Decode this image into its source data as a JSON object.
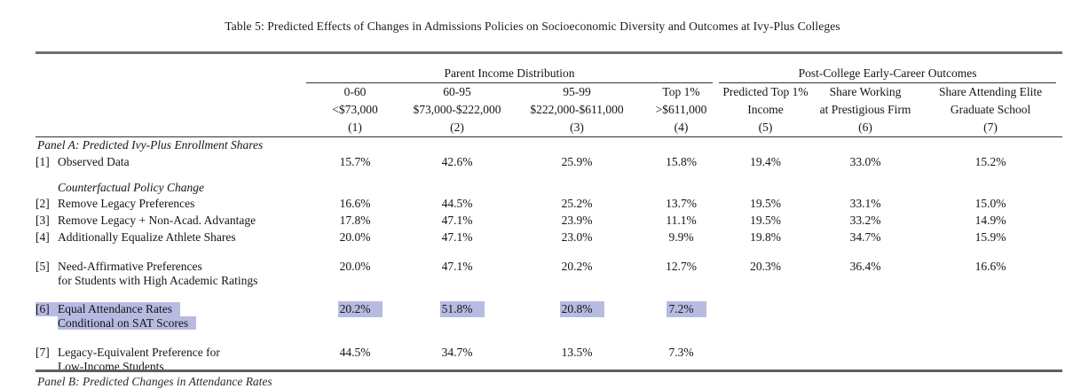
{
  "page": {
    "background": "#ffffff",
    "text_color": "#151515",
    "highlight_color": "#b7bbe1"
  },
  "title": "Table 5: Predicted Effects of Changes in Admissions Policies on Socioeconomic Diversity and Outcomes at Ivy-Plus Colleges",
  "table": {
    "groups": [
      {
        "label": "Parent Income Distribution",
        "colspan": 4
      },
      {
        "label": "Post-College Early-Career Outcomes",
        "colspan": 3
      }
    ],
    "columns": [
      {
        "l1": "0-60",
        "l2": "<$73,000",
        "num": "(1)"
      },
      {
        "l1": "60-95",
        "l2": "$73,000-$222,000",
        "num": "(2)"
      },
      {
        "l1": "95-99",
        "l2": "$222,000-$611,000",
        "num": "(3)"
      },
      {
        "l1": "Top 1%",
        "l2": ">$611,000",
        "num": "(4)"
      },
      {
        "l1": "Predicted Top 1%",
        "l2": "Income",
        "num": "(5)"
      },
      {
        "l1": "Share Working",
        "l2": "at Prestigious Firm",
        "num": "(6)"
      },
      {
        "l1": "Share Attending Elite",
        "l2": "Graduate School",
        "num": "(7)"
      }
    ],
    "rows": [
      {
        "type": "panel",
        "text": "Panel A: Predicted Ivy-Plus Enrollment Shares"
      },
      {
        "type": "data",
        "id": "[1]",
        "lines": [
          "Observed Data"
        ],
        "values": [
          "15.7%",
          "42.6%",
          "25.9%",
          "15.8%",
          "19.4%",
          "33.0%",
          "15.2%"
        ]
      },
      {
        "type": "spacer",
        "h": 11
      },
      {
        "type": "section",
        "text": "Counterfactual Policy Change"
      },
      {
        "type": "data",
        "id": "[2]",
        "lines": [
          "Remove Legacy Preferences"
        ],
        "values": [
          "16.6%",
          "44.5%",
          "25.2%",
          "13.7%",
          "19.5%",
          "33.1%",
          "15.0%"
        ]
      },
      {
        "type": "data",
        "id": "[3]",
        "lines": [
          "Remove Legacy + Non-Acad. Advantage"
        ],
        "values": [
          "17.8%",
          "47.1%",
          "23.9%",
          "11.1%",
          "19.5%",
          "33.2%",
          "14.9%"
        ]
      },
      {
        "type": "data",
        "id": "[4]",
        "lines": [
          "Additionally Equalize Athlete Shares"
        ],
        "values": [
          "20.0%",
          "47.1%",
          "23.0%",
          "9.9%",
          "19.8%",
          "34.7%",
          "15.9%"
        ]
      },
      {
        "type": "spacer",
        "h": 14
      },
      {
        "type": "data",
        "id": "[5]",
        "lines": [
          "Need-Affirmative Preferences",
          "for Students with High Academic Ratings"
        ],
        "values": [
          "20.0%",
          "47.1%",
          "20.2%",
          "12.7%",
          "20.3%",
          "36.4%",
          "16.6%"
        ]
      },
      {
        "type": "spacer",
        "h": 14
      },
      {
        "type": "data",
        "id": "[6]",
        "highlight": true,
        "lines": [
          "Equal Attendance Rates",
          "Conditional on SAT Scores"
        ],
        "values": [
          "20.2%",
          "51.8%",
          "20.8%",
          "7.2%",
          "",
          "",
          ""
        ]
      },
      {
        "type": "spacer",
        "h": 15
      },
      {
        "type": "data",
        "id": "[7]",
        "lines": [
          "Legacy-Equivalent Preference for",
          "Low-Income Students"
        ],
        "values": [
          "44.5%",
          "34.7%",
          "13.5%",
          "7.3%",
          "",
          "",
          ""
        ]
      }
    ],
    "panel_b_partial": "Panel B: Predicted Changes in Attendance Rates"
  }
}
